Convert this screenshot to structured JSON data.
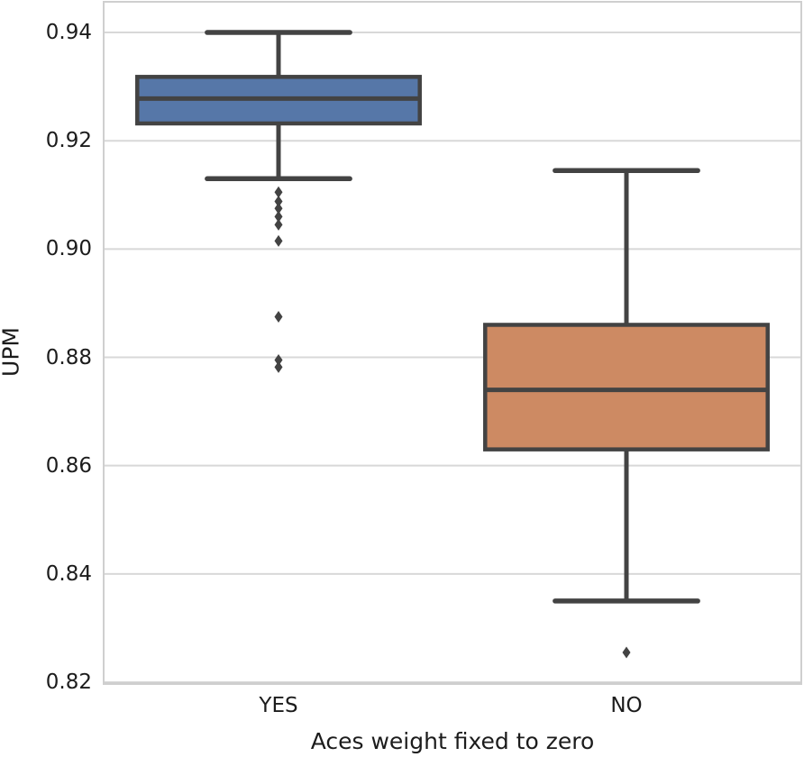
{
  "figure": {
    "background_color": "#ffffff",
    "text_color": "#1c1c1c",
    "grid_color": "#d8d8d8",
    "spine_color": "#cfcfcf",
    "box_line_color": "#434343"
  },
  "chart_data": {
    "type": "box",
    "title": "",
    "xlabel": "Aces weight fixed to zero",
    "ylabel": "UPM",
    "categories": [
      "YES",
      "NO"
    ],
    "y_ticks": [
      0.82,
      0.84,
      0.86,
      0.88,
      0.9,
      0.92,
      0.94
    ],
    "ylim": [
      0.82,
      0.9455
    ],
    "grid": true,
    "legend": false,
    "boxes": [
      {
        "category": "YES",
        "fill_color": "#5677a8",
        "whisker_low": 0.913,
        "q1": 0.9232,
        "median": 0.9278,
        "q3": 0.9318,
        "whisker_high": 0.94,
        "outliers": [
          0.9105,
          0.9088,
          0.9075,
          0.906,
          0.9045,
          0.9015,
          0.8875,
          0.8795,
          0.8782
        ]
      },
      {
        "category": "NO",
        "fill_color": "#cd8a63",
        "whisker_low": 0.835,
        "q1": 0.863,
        "median": 0.874,
        "q3": 0.886,
        "whisker_high": 0.9145,
        "outliers": [
          0.8255
        ]
      }
    ]
  }
}
